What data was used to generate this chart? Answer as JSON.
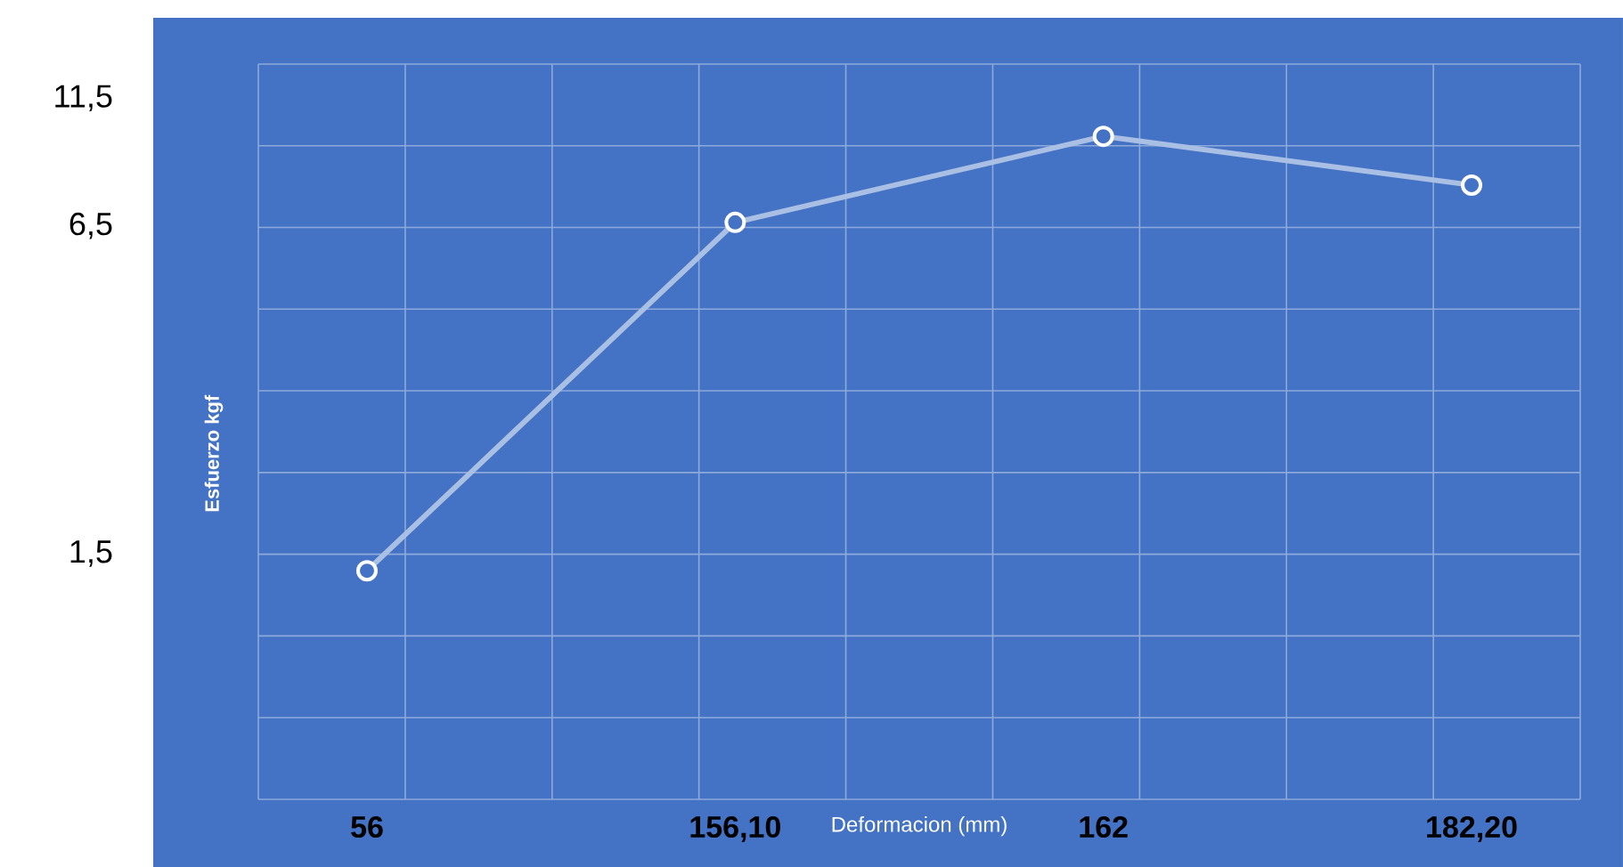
{
  "chart_data": {
    "type": "line",
    "xlabel": "Deformacion (mm)",
    "ylabel": "Esfuerzo kgf",
    "categories": [
      "56",
      "156,10",
      "162",
      "182,20"
    ],
    "series": [
      {
        "color": "#a9bfe3",
        "values": [
          1.39,
          6.6,
          9.7,
          7.8
        ]
      }
    ],
    "log": "y",
    "ylim": [
      0.5,
      13.4
    ],
    "yticks": [
      {
        "value": 1.5,
        "label": "1,5"
      },
      {
        "value": 6.5,
        "label": "6,5"
      },
      {
        "value": 11.5,
        "label": "11,5"
      }
    ],
    "grid": true,
    "marker": "circle",
    "line_style": "solid"
  }
}
